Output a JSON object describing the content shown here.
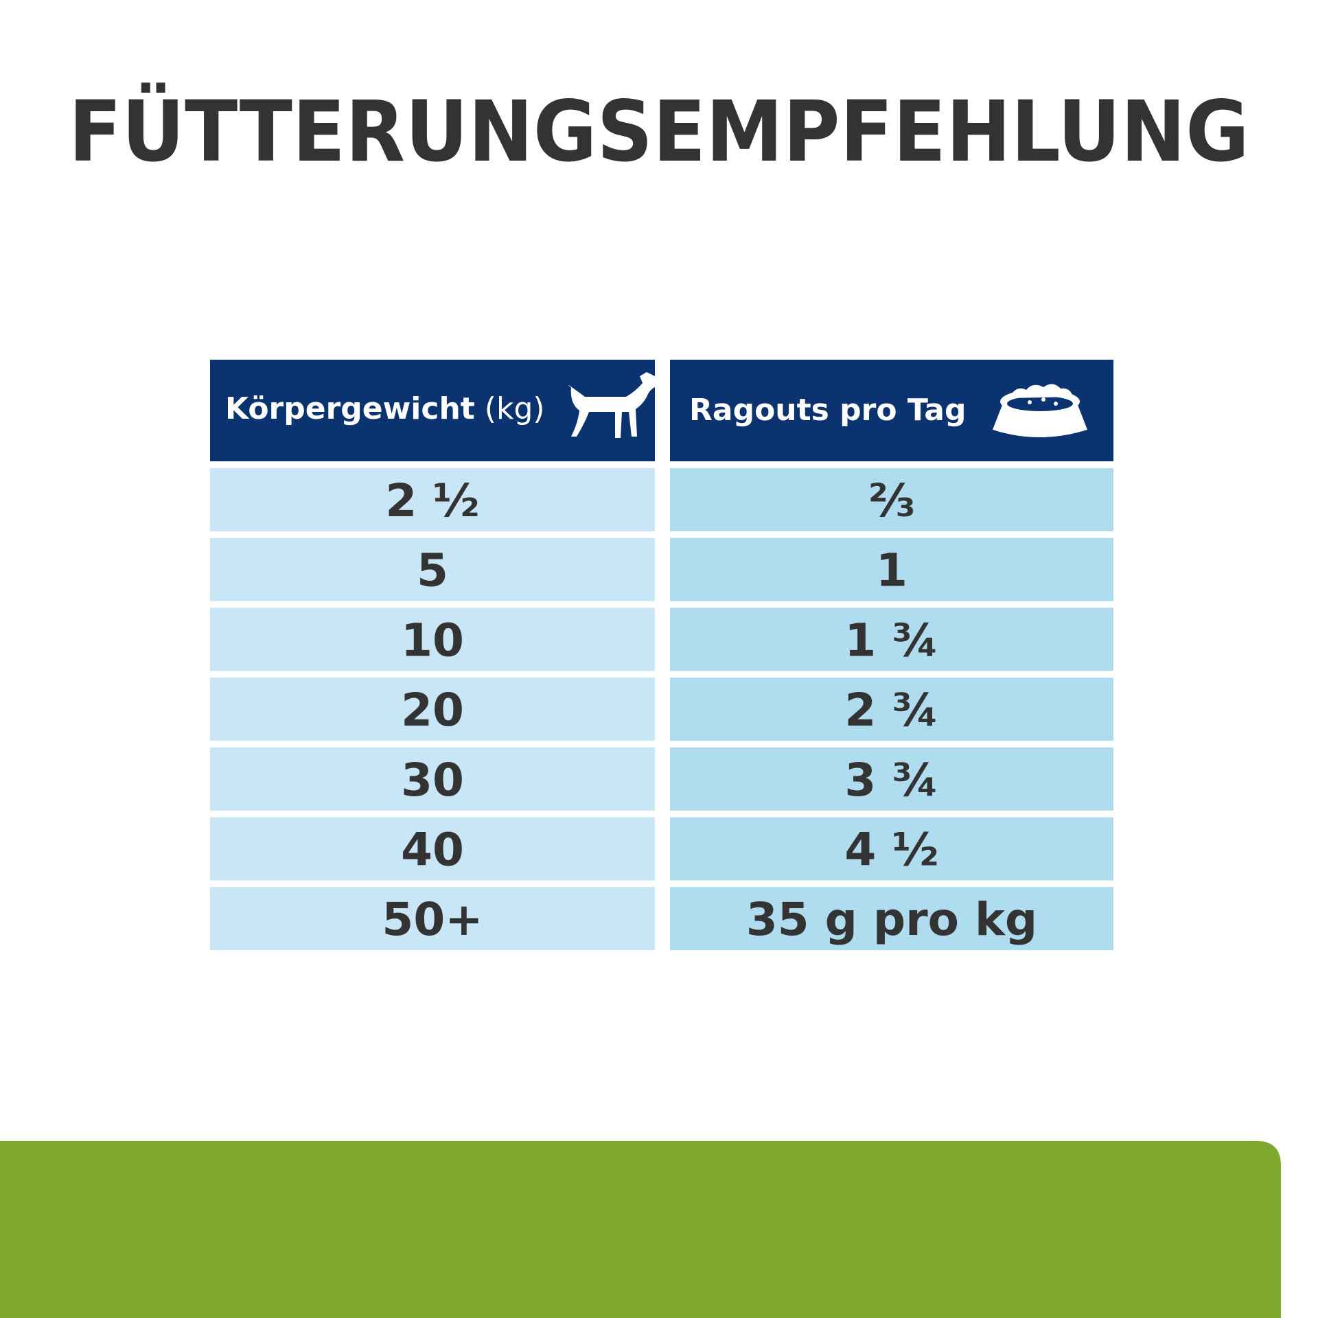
{
  "header": {
    "title": "FÜTTERUNGSEMPFEHLUNG"
  },
  "table": {
    "headers": [
      {
        "label": "Körpergewicht",
        "unit": "(kg)"
      },
      {
        "label": "Ragouts pro Tag"
      }
    ],
    "rows": [
      [
        "2 ½",
        "⅔"
      ],
      [
        "5",
        "1"
      ],
      [
        "10",
        "1 ¾"
      ],
      [
        "20",
        "2 ¾"
      ],
      [
        "30",
        "3 ¾"
      ],
      [
        "40",
        "4 ½"
      ],
      [
        "50+",
        "35 g pro kg"
      ]
    ]
  }
}
